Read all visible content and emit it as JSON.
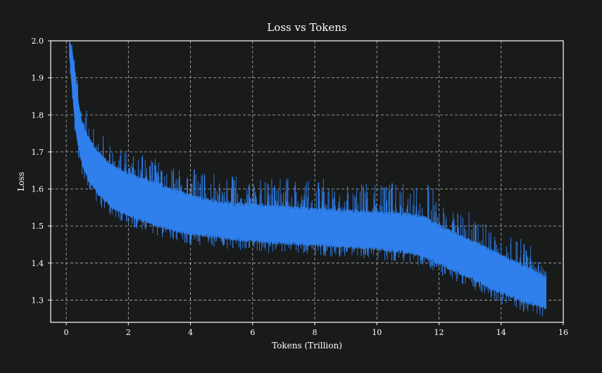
{
  "chart_data": {
    "type": "line",
    "title": "Loss vs Tokens",
    "xlabel": "Tokens (Trillion)",
    "ylabel": "Loss",
    "xlim": [
      -0.5,
      16
    ],
    "ylim": [
      1.24,
      2.0
    ],
    "xticks": [
      0,
      2,
      4,
      6,
      8,
      10,
      12,
      14,
      16
    ],
    "yticks": [
      1.3,
      1.4,
      1.5,
      1.6,
      1.7,
      1.8,
      1.9,
      2.0
    ],
    "xtick_labels": [
      "0",
      "2",
      "4",
      "6",
      "8",
      "10",
      "12",
      "14",
      "16"
    ],
    "ytick_labels": [
      "1.3",
      "1.4",
      "1.5",
      "1.6",
      "1.7",
      "1.8",
      "1.9",
      "2.0"
    ],
    "grid": true,
    "grid_style": "dashed",
    "legend": "none",
    "series": [
      {
        "band": "noisy",
        "color": "#2f80ed",
        "x": [
          0.1,
          0.2,
          0.3,
          0.4,
          0.5,
          0.7,
          1.0,
          1.5,
          2.0,
          3.0,
          4.0,
          5.0,
          6.0,
          7.0,
          8.0,
          9.0,
          10.0,
          11.0,
          11.5,
          12.0,
          13.0,
          14.0,
          15.0,
          15.45
        ],
        "upper": [
          2.0,
          1.97,
          1.9,
          1.83,
          1.78,
          1.74,
          1.7,
          1.66,
          1.64,
          1.61,
          1.58,
          1.56,
          1.555,
          1.55,
          1.545,
          1.54,
          1.535,
          1.53,
          1.525,
          1.5,
          1.46,
          1.42,
          1.38,
          1.36
        ],
        "lower": [
          1.96,
          1.86,
          1.76,
          1.71,
          1.67,
          1.63,
          1.59,
          1.55,
          1.53,
          1.5,
          1.48,
          1.47,
          1.46,
          1.455,
          1.45,
          1.445,
          1.44,
          1.43,
          1.42,
          1.4,
          1.36,
          1.32,
          1.29,
          1.28
        ],
        "spike_max": [
          2.0,
          2.0,
          1.98,
          1.9,
          1.86,
          1.8,
          1.76,
          1.72,
          1.7,
          1.68,
          1.66,
          1.64,
          1.64,
          1.63,
          1.63,
          1.62,
          1.62,
          1.62,
          1.64,
          1.58,
          1.54,
          1.5,
          1.45,
          1.4
        ]
      }
    ]
  }
}
